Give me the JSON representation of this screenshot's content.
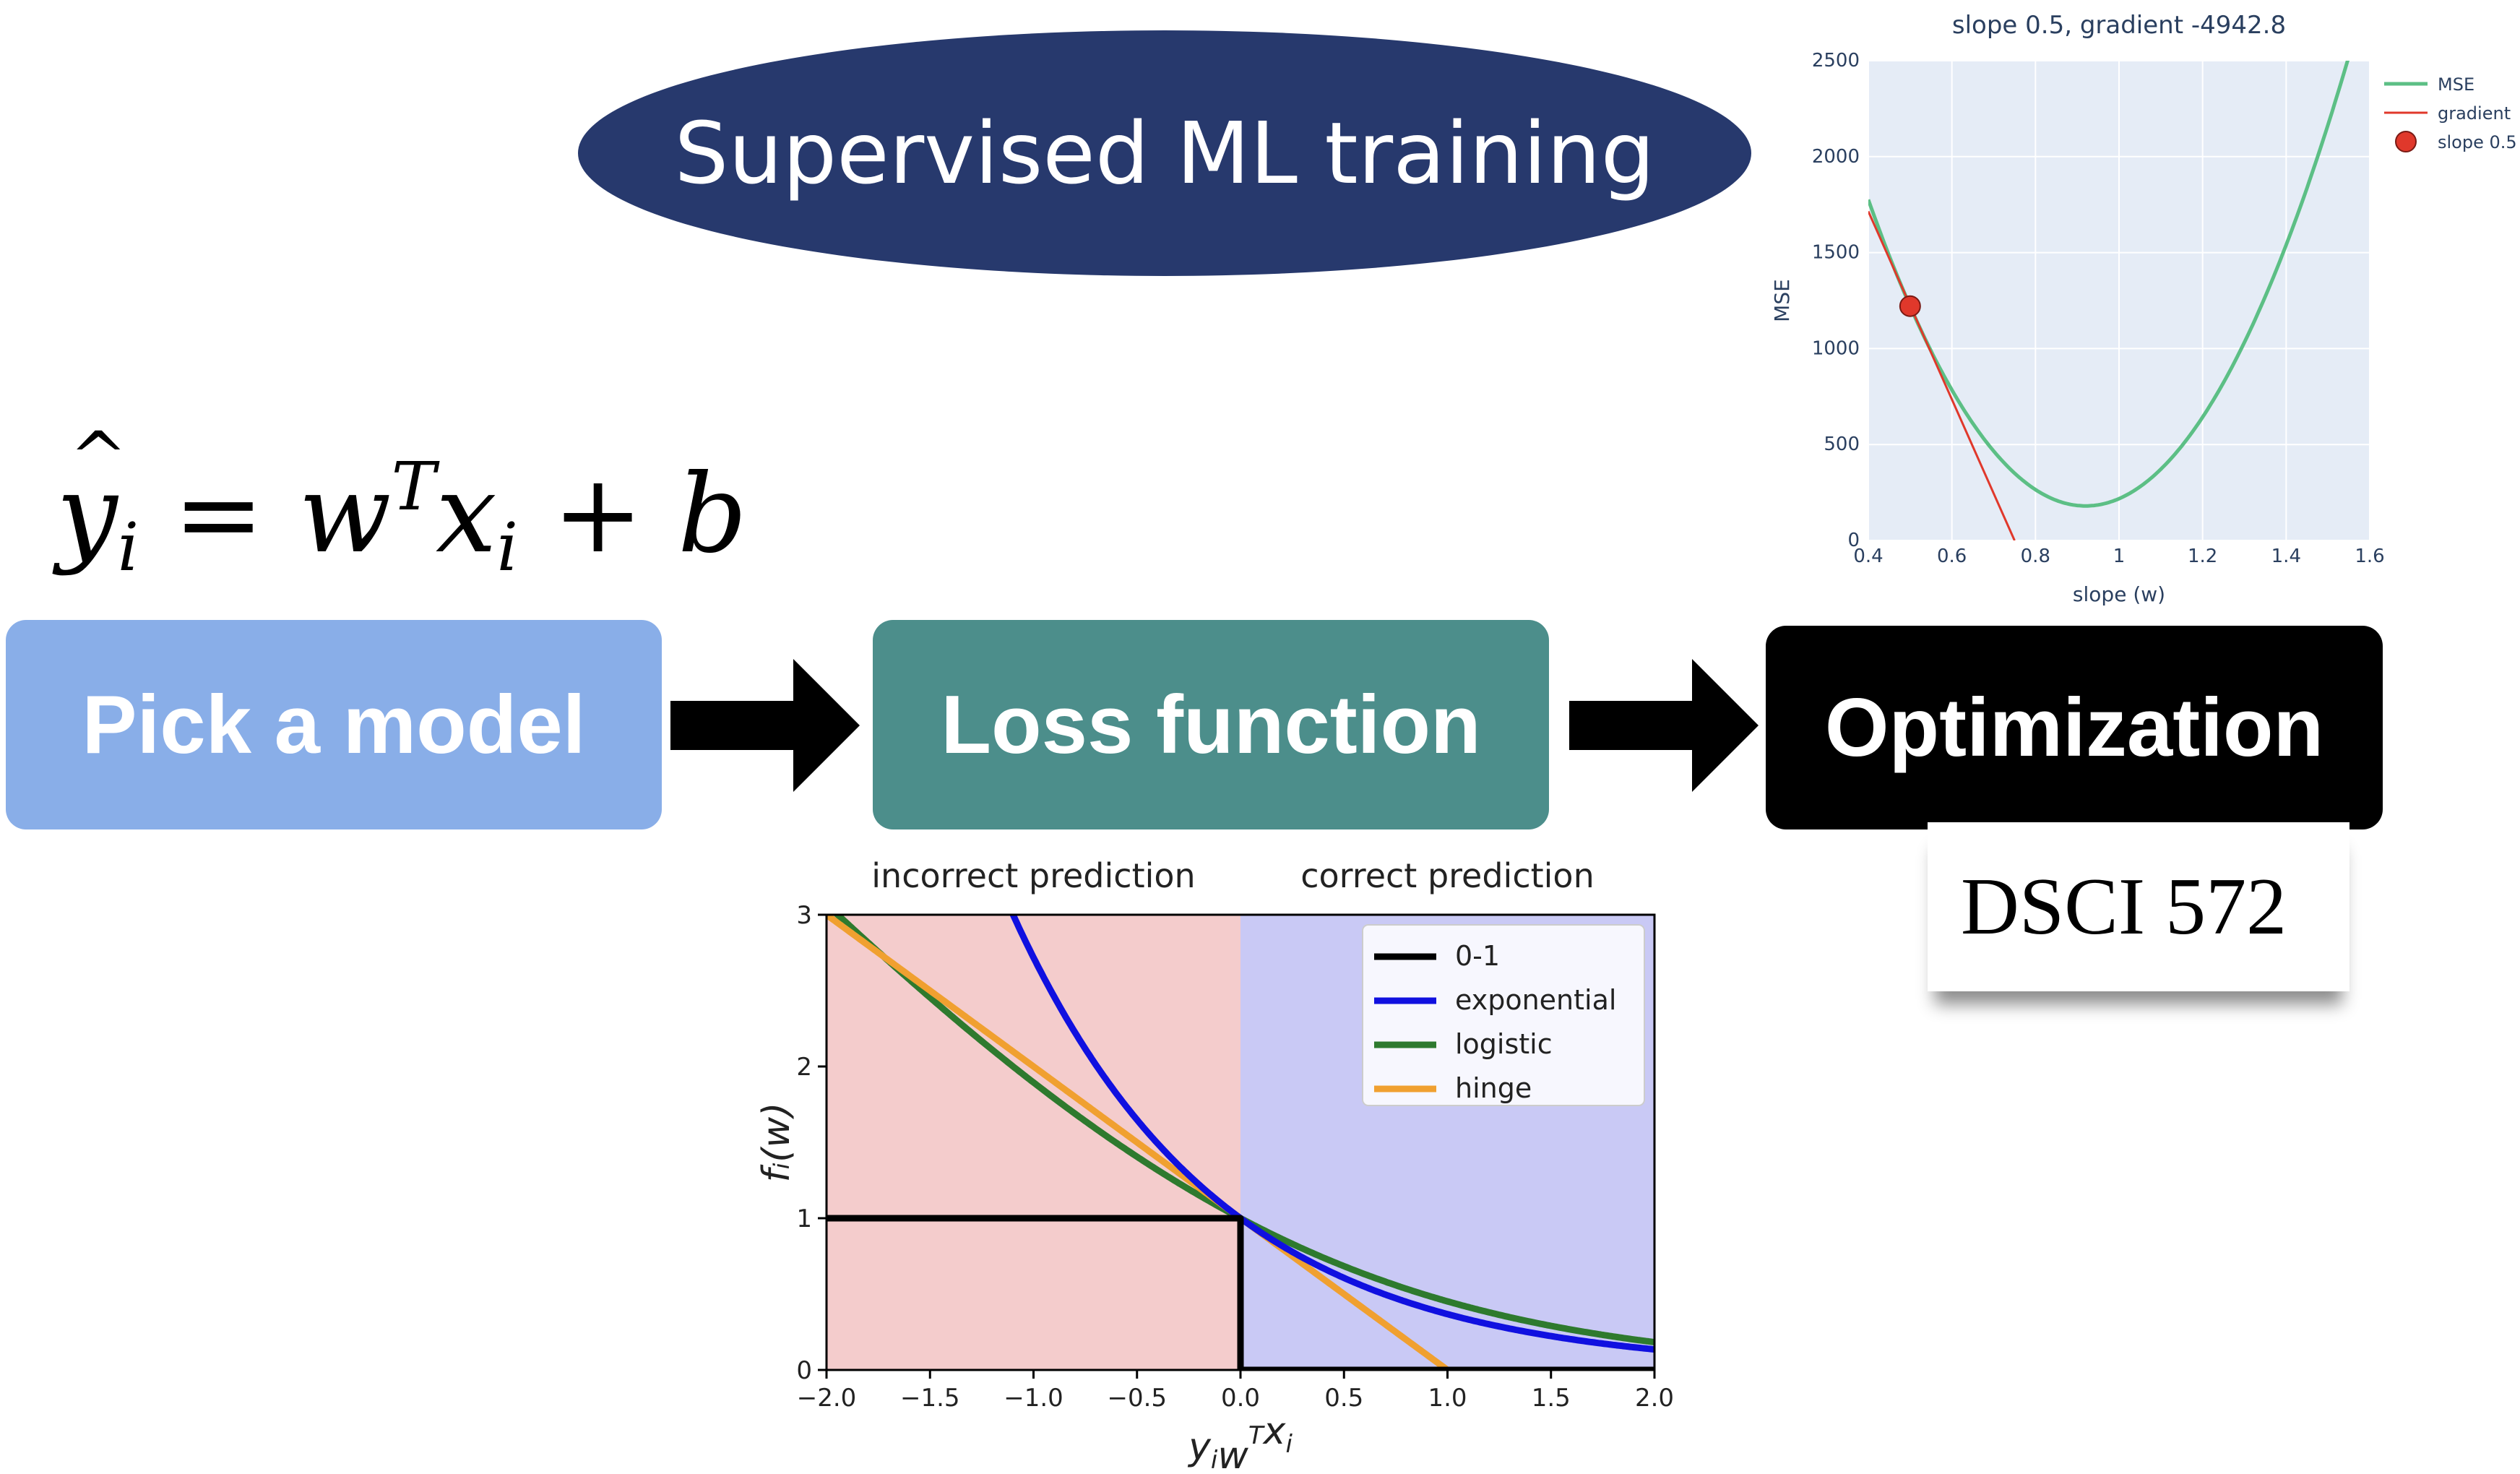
{
  "title": "Supervised ML training",
  "equation": {
    "lhs": "y",
    "sub_i": "i",
    "eq": " = w",
    "sup_T": "T",
    "x": "x",
    "plus": " + b"
  },
  "steps": {
    "model": "Pick a model",
    "loss": "Loss function",
    "optimization": "Optimization"
  },
  "course": "DSCI 572",
  "colors": {
    "title_bg": "#27396d",
    "model": "#89aee8",
    "loss": "#4c8e8b",
    "optimization": "#000000"
  },
  "chart_data": [
    {
      "type": "line",
      "title": "slope 0.5, gradient -4942.8",
      "xlabel": "slope (w)",
      "ylabel": "MSE",
      "xlim": [
        0.4,
        1.6
      ],
      "ylim": [
        0,
        2500
      ],
      "xticks": [
        "0.4",
        "0.6",
        "0.8",
        "1",
        "1.2",
        "1.4",
        "1.6"
      ],
      "yticks": [
        "0",
        "500",
        "1000",
        "1500",
        "2000",
        "2500"
      ],
      "legend_position": "top-right",
      "grid": true,
      "series": [
        {
          "name": "MSE",
          "color": "#5cbf85",
          "curve": "parabola",
          "min_at": [
            0.92,
            180
          ],
          "points": [
            [
              0.4,
              1770
            ],
            [
              0.5,
              1221
            ],
            [
              0.6,
              790
            ],
            [
              0.7,
              449
            ],
            [
              0.8,
              262
            ],
            [
              0.92,
              180
            ],
            [
              1.0,
              216
            ],
            [
              1.1,
              356
            ],
            [
              1.2,
              667
            ],
            [
              1.3,
              1080
            ],
            [
              1.4,
              1600
            ],
            [
              1.5,
              2230
            ],
            [
              1.55,
              2500
            ]
          ]
        },
        {
          "name": "gradient",
          "color": "#e0382b",
          "points": [
            [
              0.4,
              1715
            ],
            [
              0.75,
              0
            ]
          ]
        },
        {
          "name": "slope 0.5",
          "color": "#e0382b",
          "marker": "circle",
          "points": [
            [
              0.5,
              1221
            ]
          ]
        }
      ]
    },
    {
      "type": "line",
      "xlabel": "y_i w^T x_i",
      "ylabel": "f_i(w)",
      "xlim": [
        -2,
        2
      ],
      "ylim": [
        0,
        3
      ],
      "xticks": [
        "−2.0",
        "−1.5",
        "−1.0",
        "−0.5",
        "0.0",
        "0.5",
        "1.0",
        "1.5",
        "2.0"
      ],
      "yticks": [
        "0",
        "1",
        "2",
        "3"
      ],
      "regions": [
        {
          "label": "incorrect prediction",
          "x": [
            -2,
            0
          ],
          "color": "#f4cccc"
        },
        {
          "label": "correct prediction",
          "x": [
            0,
            2
          ],
          "color": "#c9c9f5"
        }
      ],
      "legend_position": "top-right",
      "series": [
        {
          "name": "0-1",
          "color": "#000000",
          "points": [
            [
              -2,
              1
            ],
            [
              0,
              1
            ],
            [
              0,
              0
            ],
            [
              2,
              0
            ]
          ]
        },
        {
          "name": "exponential",
          "color": "#1010e0",
          "function": "exp(-x)"
        },
        {
          "name": "logistic",
          "color": "#2e7a2e",
          "function": "log2(1+exp(-x))"
        },
        {
          "name": "hinge",
          "color": "#f0a030",
          "function": "max(0,1-x)"
        }
      ]
    }
  ]
}
